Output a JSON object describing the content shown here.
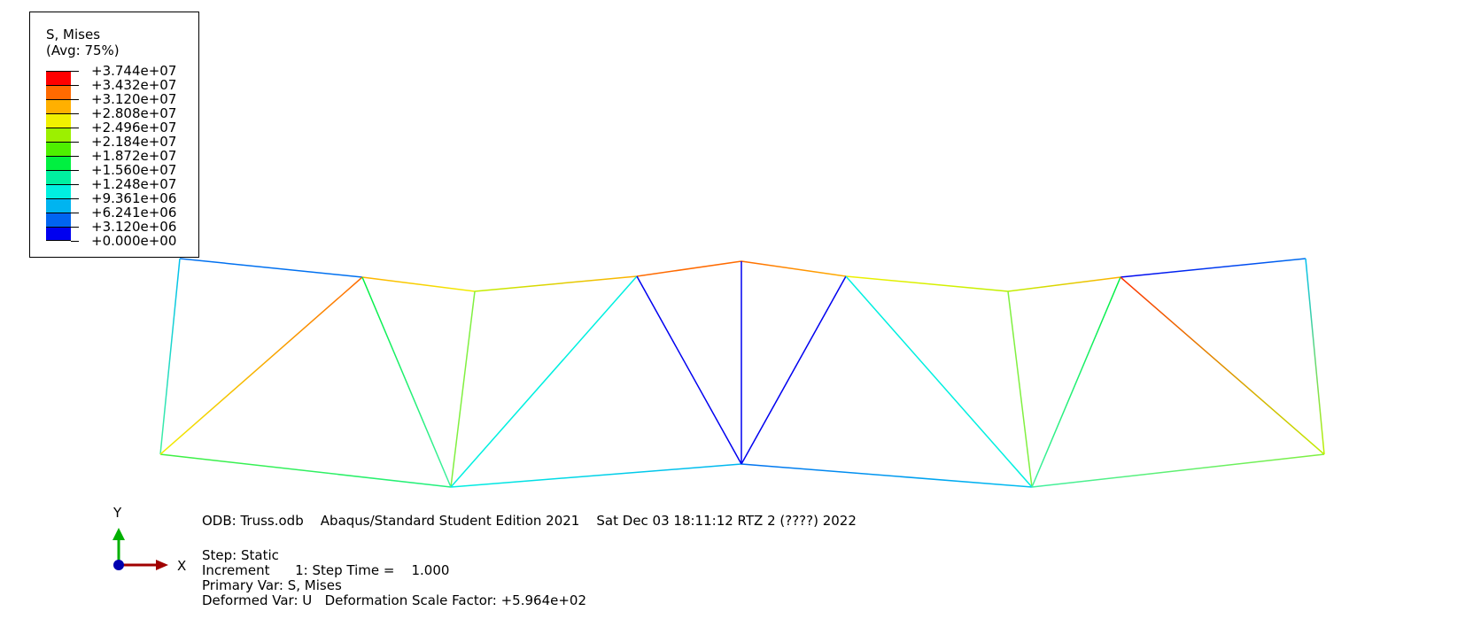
{
  "legend": {
    "title": "S, Mises",
    "subtitle": "(Avg: 75%)",
    "entries": [
      {
        "label": "+3.744e+07",
        "color": "#ff0000"
      },
      {
        "label": "+3.432e+07",
        "color": "#ff6a00"
      },
      {
        "label": "+3.120e+07",
        "color": "#ffb000"
      },
      {
        "label": "+2.808e+07",
        "color": "#f0f000"
      },
      {
        "label": "+2.496e+07",
        "color": "#9cf000"
      },
      {
        "label": "+2.184e+07",
        "color": "#4ef000"
      },
      {
        "label": "+1.872e+07",
        "color": "#00f040"
      },
      {
        "label": "+1.560e+07",
        "color": "#00f0a0"
      },
      {
        "label": "+1.248e+07",
        "color": "#00f0e0"
      },
      {
        "label": "+9.361e+06",
        "color": "#00b4f0"
      },
      {
        "label": "+6.241e+06",
        "color": "#0064f0"
      },
      {
        "label": "+3.120e+06",
        "color": "#0000f0"
      }
    ],
    "bottom_label": "+0.000e+00"
  },
  "triad": {
    "y_label": "Y",
    "x_label": "X",
    "y_color": "#00b000",
    "x_color": "#a00000",
    "z_color": "#0000b0"
  },
  "info": {
    "header_line": "ODB: Truss.odb    Abaqus/Standard Student Edition 2021    Sat Dec 03 18:11:12 RTZ 2 (????) 2022",
    "step_line": "Step: Static",
    "increment_line": "Increment      1: Step Time =    1.000",
    "primary_var_line": "Primary Var: S, Mises",
    "deformed_var_line": "Deformed Var: U   Deformation Scale Factor: +5.964e+02"
  },
  "truss": {
    "members": [
      {
        "id": "top-1",
        "colors": [
          "#0070f0",
          "#0070f0"
        ]
      },
      {
        "id": "top-2",
        "colors": [
          "#ffb000",
          "#f0f000"
        ]
      },
      {
        "id": "top-3",
        "colors": [
          "#c0f000",
          "#ffb000"
        ]
      },
      {
        "id": "top-4",
        "colors": [
          "#ff6a00",
          "#ff6a00"
        ]
      },
      {
        "id": "top-5",
        "colors": [
          "#ff6a00",
          "#ffb000"
        ]
      },
      {
        "id": "top-6",
        "colors": [
          "#f0f000",
          "#c0f000"
        ]
      },
      {
        "id": "top-7",
        "colors": [
          "#c0f000",
          "#ffb000"
        ]
      },
      {
        "id": "top-8",
        "colors": [
          "#0000f0",
          "#0070f0"
        ]
      },
      {
        "id": "bottom-1",
        "colors": [
          "#40f040",
          "#20f080"
        ]
      },
      {
        "id": "bottom-2",
        "colors": [
          "#00f0e0",
          "#00b4f0"
        ]
      },
      {
        "id": "bottom-3",
        "colors": [
          "#0070f0",
          "#00c0f0"
        ]
      },
      {
        "id": "bottom-4",
        "colors": [
          "#40f0a0",
          "#80f040"
        ]
      },
      {
        "id": "vertical-left",
        "colors": [
          "#00c0f0",
          "#40f0a0"
        ]
      },
      {
        "id": "vertical-2",
        "colors": [
          "#80f040",
          "#80f040"
        ]
      },
      {
        "id": "vertical-center",
        "colors": [
          "#0000f0",
          "#0000f0"
        ]
      },
      {
        "id": "vertical-6",
        "colors": [
          "#80f040",
          "#80f040"
        ]
      },
      {
        "id": "vertical-right",
        "colors": [
          "#00c0f0",
          "#c0f000"
        ]
      },
      {
        "id": "diagonal-1",
        "colors": [
          "#ff6a00",
          "#f0f000"
        ]
      },
      {
        "id": "diagonal-2",
        "colors": [
          "#00f040",
          "#40f0a0"
        ]
      },
      {
        "id": "diagonal-3",
        "colors": [
          "#00f0e0",
          "#00f0e0"
        ]
      },
      {
        "id": "diagonal-4",
        "colors": [
          "#0000f0",
          "#0000f0"
        ]
      },
      {
        "id": "diagonal-5",
        "colors": [
          "#0000f0",
          "#0000f0"
        ]
      },
      {
        "id": "diagonal-6",
        "colors": [
          "#00f0e0",
          "#00f0e0"
        ]
      },
      {
        "id": "diagonal-7",
        "colors": [
          "#00f040",
          "#40f0a0"
        ]
      },
      {
        "id": "diagonal-8",
        "colors": [
          "#ff3000",
          "#c0f000"
        ]
      }
    ]
  }
}
